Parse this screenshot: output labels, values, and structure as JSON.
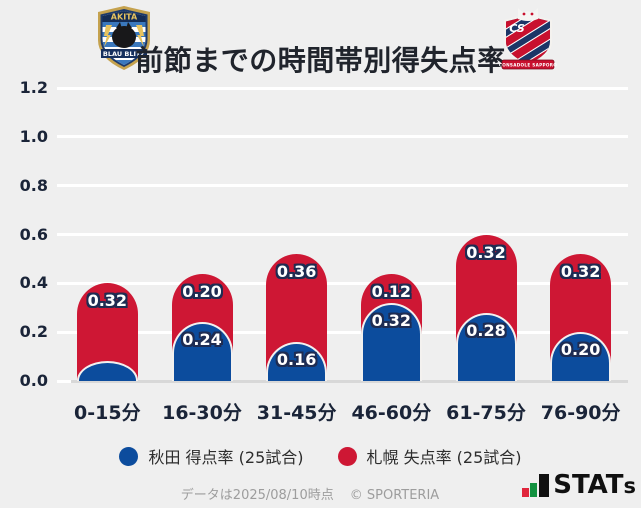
{
  "header": {
    "title": "前節までの時間帯別得失点率",
    "left_badge": {
      "name": "AKITA BLAU BLITZ",
      "banner": "AKITA",
      "ribbon": "BLAU BLITZ"
    },
    "right_badge": {
      "name": "CONSADOLE SAPPORO",
      "monogram": "CS",
      "ribbon": "CONSADOLE SAPPORO"
    }
  },
  "chart_data": {
    "type": "bar",
    "stacked": true,
    "title": "前節までの時間帯別得失点率",
    "categories": [
      "0-15分",
      "16-30分",
      "31-45分",
      "46-60分",
      "61-75分",
      "76-90分"
    ],
    "series": [
      {
        "name": "秋田 得点率 (25試合)",
        "color": "#0c4c9d",
        "values": [
          0.08,
          0.24,
          0.16,
          0.32,
          0.28,
          0.2
        ],
        "value_labels": [
          "",
          "0.24",
          "0.16",
          "0.32",
          "0.28",
          "0.20"
        ]
      },
      {
        "name": "札幌 失点率 (25試合)",
        "color": "#ce1734",
        "values": [
          0.32,
          0.2,
          0.36,
          0.12,
          0.32,
          0.32
        ],
        "value_labels": [
          "0.32",
          "0.20",
          "0.36",
          "0.12",
          "0.32",
          "0.32"
        ]
      }
    ],
    "ylim": [
      0,
      1.2
    ],
    "y_ticks": [
      "0.0",
      "0.2",
      "0.4",
      "0.6",
      "0.8",
      "1.0",
      "1.2"
    ],
    "grid": true,
    "legend_position": "bottom"
  },
  "legend": {
    "items": [
      {
        "label": "秋田 得点率 (25試合)",
        "color": "#0c4c9d"
      },
      {
        "label": "札幌 失点率 (25試合)",
        "color": "#ce1734"
      }
    ]
  },
  "footer": {
    "note": "データは2025/08/10時点",
    "copyright": "© SPORTERIA",
    "brand_main": "STAT",
    "brand_small": "s"
  }
}
